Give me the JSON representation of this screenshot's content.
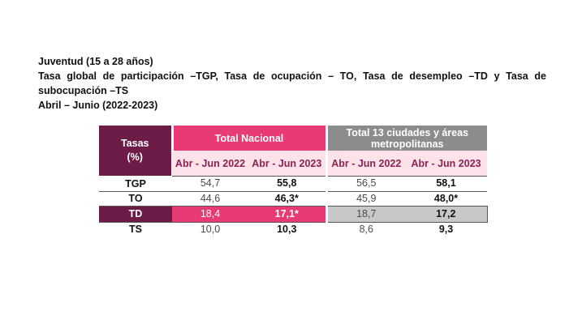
{
  "caption": {
    "line1": "Juventud (15 a 28 años)",
    "line2": "Tasa global de participación –TGP, Tasa de ocupación – TO, Tasa de desempleo –TD y Tasa de",
    "line3": "subocupación –TS",
    "line4": "Abril – Junio (2022-2023)"
  },
  "table": {
    "header_tasas": "Tasas (%)",
    "header_tasas_line1": "Tasas",
    "header_tasas_line2": "(%)",
    "group_nacional": "Total Nacional",
    "group_ciudades": "Total 13 ciudades y áreas metropolitanas",
    "group_ciudades_line1": "Total 13 ciudades y áreas",
    "group_ciudades_line2": "metropolitanas",
    "periods": [
      "Abr - Jun 2022",
      "Abr - Jun 2023",
      "Abr - Jun 2022",
      "Abr - Jun 2023"
    ],
    "rows": [
      {
        "label": "TGP",
        "values": [
          "54,7",
          "55,8",
          "56,5",
          "58,1"
        ]
      },
      {
        "label": "TO",
        "values": [
          "44,6",
          "46,3*",
          "45,9",
          "48,0*"
        ]
      },
      {
        "label": "TD",
        "values": [
          "18,4",
          "17,1*",
          "18,7",
          "17,2"
        ]
      },
      {
        "label": "TS",
        "values": [
          "10,0",
          "10,3",
          "8,6",
          "9,3"
        ]
      }
    ]
  },
  "colors": {
    "dark_magenta": "#6d1b47",
    "pink": "#e83a73",
    "light_pink": "#fde2ea",
    "gray": "#8c8c8c",
    "light_gray": "#c8c8c8"
  }
}
